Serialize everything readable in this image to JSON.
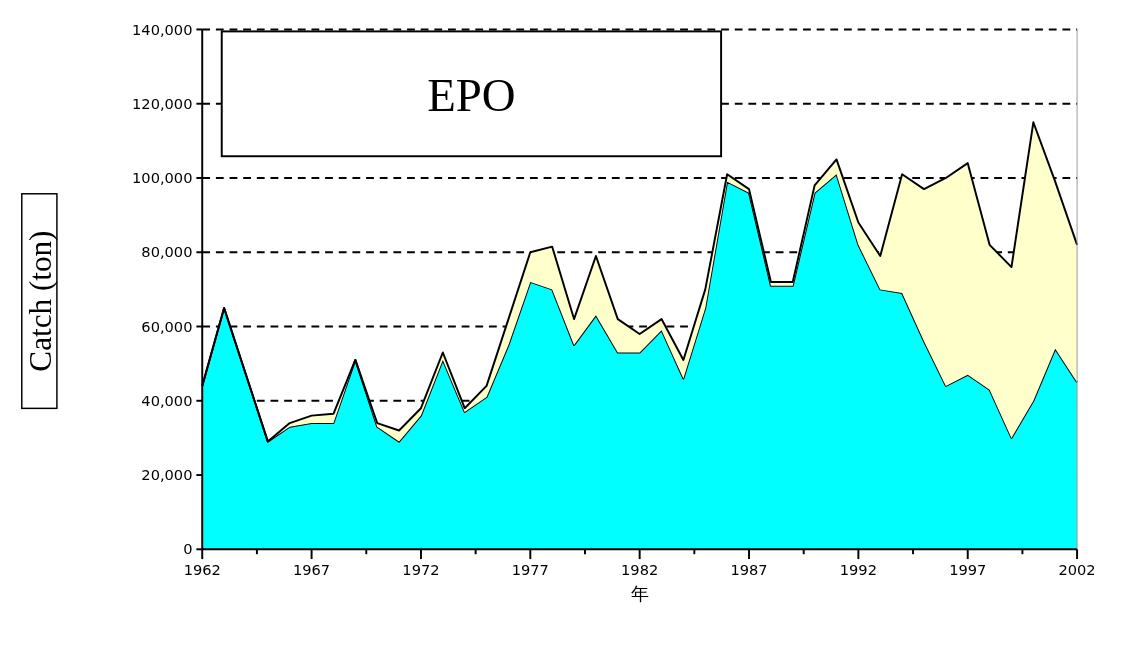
{
  "chart_data": {
    "type": "area",
    "title": "EPO",
    "xlabel": "年",
    "ylabel": "Catch (ton)",
    "stacked": true,
    "grid": "y",
    "x": [
      1962,
      1963,
      1964,
      1965,
      1966,
      1967,
      1968,
      1969,
      1970,
      1971,
      1972,
      1973,
      1974,
      1975,
      1976,
      1977,
      1978,
      1979,
      1980,
      1981,
      1982,
      1983,
      1984,
      1985,
      1986,
      1987,
      1988,
      1989,
      1990,
      1991,
      1992,
      1993,
      1994,
      1995,
      1996,
      1997,
      1998,
      1999,
      2000,
      2001,
      2002
    ],
    "series": [
      {
        "color": "#00ffff",
        "values": [
          44000,
          65000,
          47000,
          29000,
          33000,
          34000,
          34000,
          51000,
          33000,
          29000,
          36000,
          51000,
          37000,
          41000,
          55000,
          72000,
          70000,
          55000,
          63000,
          53000,
          53000,
          59000,
          46000,
          65000,
          99000,
          96000,
          71000,
          71000,
          96000,
          101000,
          82000,
          70000,
          69000,
          56000,
          44000,
          47000,
          43000,
          30000,
          40000,
          54000,
          45000
        ]
      },
      {
        "color": "#ffffcc",
        "values": [
          0,
          0,
          0,
          0,
          1000,
          2000,
          2500,
          0,
          1000,
          3000,
          2000,
          2000,
          1000,
          3000,
          7000,
          8000,
          11500,
          7000,
          16000,
          9000,
          5000,
          3000,
          5000,
          5000,
          2000,
          1000,
          1000,
          1000,
          2000,
          4000,
          6000,
          9000,
          32000,
          41000,
          56000,
          57000,
          39000,
          46000,
          75000,
          45000,
          37000
        ]
      }
    ],
    "xlim": [
      1962,
      2002
    ],
    "xticks": [
      1962,
      {
        "value": 1964.5,
        "label": null
      },
      1967,
      {
        "value": 1969.5,
        "label": null
      },
      1972,
      {
        "value": 1974.5,
        "label": null
      },
      1977,
      {
        "value": 1979.5,
        "label": null
      },
      1982,
      {
        "value": 1984.5,
        "label": null
      },
      1987,
      {
        "value": 1989.5,
        "label": null
      },
      1992,
      {
        "value": 1994.5,
        "label": null
      },
      1997,
      {
        "value": 1999.5,
        "label": null
      },
      2002
    ],
    "ylim": [
      0,
      140000
    ],
    "yticks": [
      0,
      {
        "value": 20000,
        "label": "20,000"
      },
      {
        "value": 40000,
        "label": "40,000"
      },
      {
        "value": 60000,
        "label": "60,000"
      },
      {
        "value": 80000,
        "label": "80,000"
      },
      {
        "value": 100000,
        "label": "100,000"
      },
      {
        "value": 120000,
        "label": "120,000"
      },
      {
        "value": 140000,
        "label": "140,000"
      }
    ]
  }
}
